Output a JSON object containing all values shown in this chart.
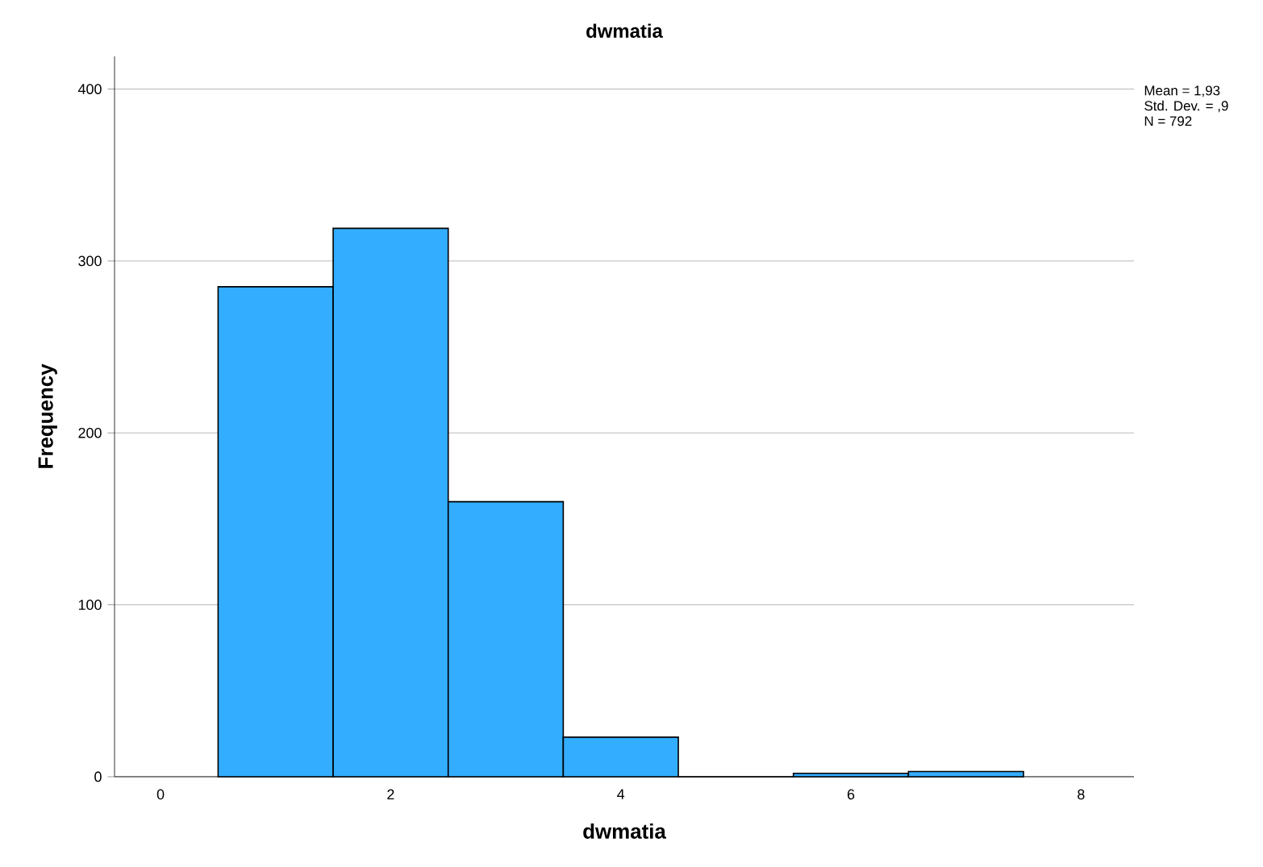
{
  "chart_data": {
    "type": "histogram",
    "title": "dwmatia",
    "xlabel": "dwmatia",
    "ylabel": "Frequency",
    "bins": [
      0.5,
      1.5,
      2.5,
      3.5,
      4.5,
      5.5,
      6.5,
      7.5
    ],
    "values": [
      285,
      319,
      160,
      23,
      0,
      2,
      3
    ],
    "color": "#33adff",
    "xlim": [
      -0.4,
      8.46
    ],
    "ylim": [
      0,
      419
    ],
    "xticks": [
      0,
      2,
      4,
      6,
      8
    ],
    "yticks": [
      0,
      100,
      200,
      300,
      400
    ],
    "grid": "y",
    "annotations": [
      "Mean = 1,93",
      "Std. Dev. = ,9",
      "N = 792"
    ]
  }
}
